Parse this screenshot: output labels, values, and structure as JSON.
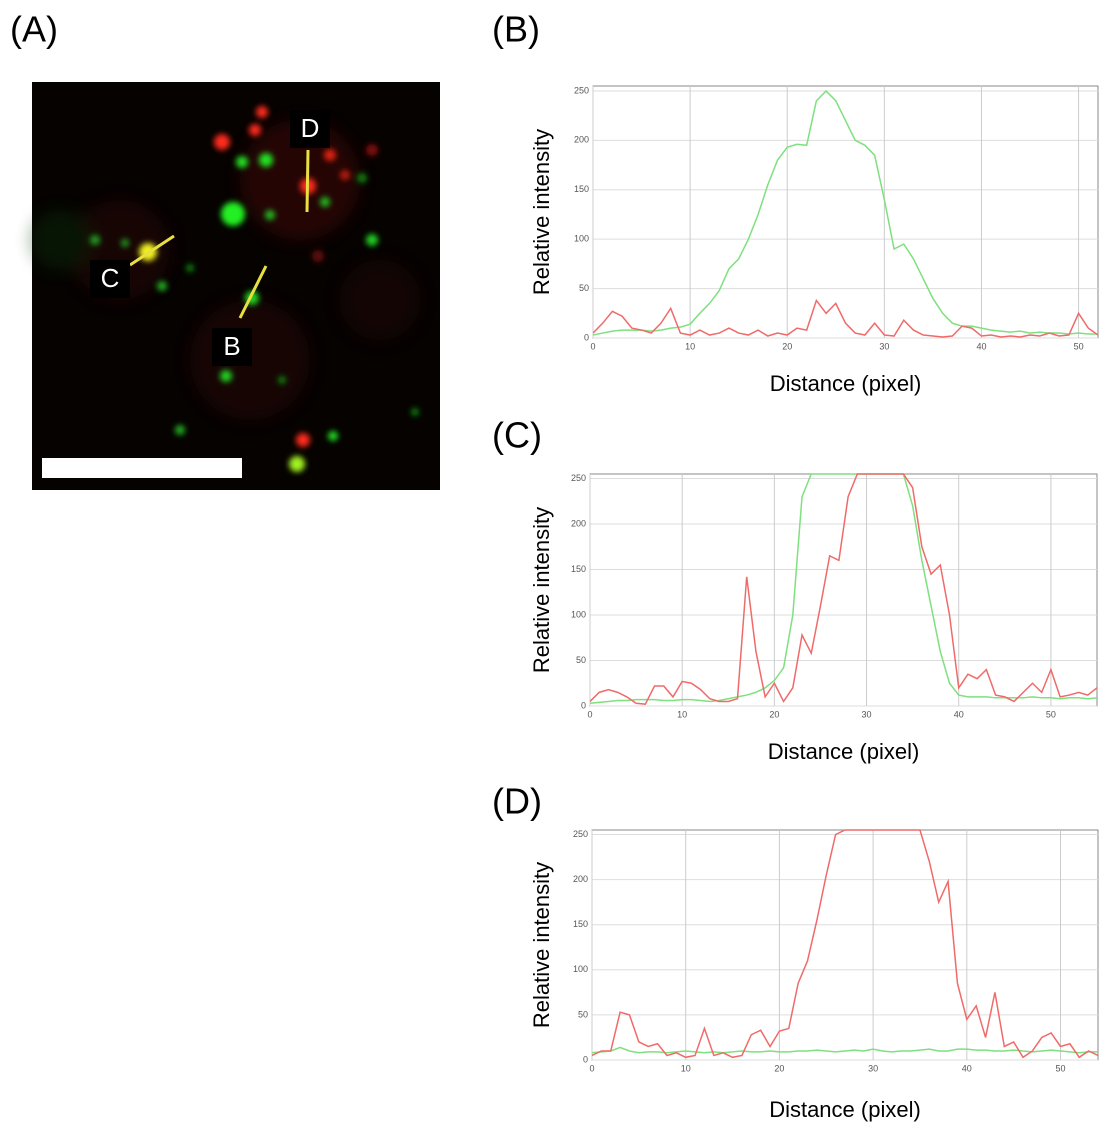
{
  "panel_labels": [
    "(A)",
    "(B)",
    "(C)",
    "(D)"
  ],
  "image_labels": [
    "D",
    "C",
    "B"
  ],
  "chart_data": [
    {
      "type": "line",
      "xlabel": "Distance (pixel)",
      "ylabel": "Relative intensity",
      "xlim": [
        0,
        52
      ],
      "ylim": [
        0,
        255
      ],
      "xticks": [
        0,
        10,
        20,
        30,
        40,
        50
      ],
      "yticks": [
        0,
        50,
        100,
        150,
        200,
        250
      ],
      "grid": true,
      "x": [
        0,
        1,
        2,
        3,
        4,
        5,
        6,
        7,
        8,
        9,
        10,
        11,
        12,
        13,
        14,
        15,
        16,
        17,
        18,
        19,
        20,
        21,
        22,
        23,
        24,
        25,
        26,
        27,
        28,
        29,
        30,
        31,
        32,
        33,
        34,
        35,
        36,
        37,
        38,
        39,
        40,
        41,
        42,
        43,
        44,
        45,
        46,
        47,
        48,
        49,
        50,
        51,
        52
      ],
      "series": [
        {
          "color": "#7ee07e",
          "values": [
            3,
            5,
            7,
            8,
            8,
            8,
            7,
            8,
            10,
            11,
            14,
            25,
            35,
            48,
            70,
            80,
            100,
            125,
            155,
            180,
            193,
            196,
            195,
            240,
            250,
            240,
            220,
            200,
            195,
            185,
            140,
            90,
            95,
            80,
            60,
            40,
            25,
            15,
            12,
            12,
            10,
            8,
            7,
            6,
            7,
            5,
            6,
            5,
            5,
            4,
            5,
            4,
            4
          ]
        },
        {
          "color": "#f06a6a",
          "values": [
            5,
            15,
            27,
            22,
            10,
            8,
            5,
            15,
            30,
            5,
            3,
            8,
            3,
            5,
            10,
            5,
            3,
            8,
            2,
            5,
            3,
            10,
            8,
            38,
            25,
            35,
            15,
            5,
            3,
            15,
            3,
            2,
            18,
            8,
            3,
            2,
            1,
            2,
            12,
            10,
            2,
            3,
            1,
            2,
            1,
            3,
            2,
            5,
            2,
            3,
            25,
            10,
            3
          ]
        }
      ]
    },
    {
      "type": "line",
      "xlabel": "Distance (pixel)",
      "ylabel": "Relative intensity",
      "xlim": [
        0,
        55
      ],
      "ylim": [
        0,
        255
      ],
      "xticks": [
        0,
        10,
        20,
        30,
        40,
        50
      ],
      "yticks": [
        0,
        50,
        100,
        150,
        200,
        250
      ],
      "grid": true,
      "x": [
        0,
        1,
        2,
        3,
        4,
        5,
        6,
        7,
        8,
        9,
        10,
        11,
        12,
        13,
        14,
        15,
        16,
        17,
        18,
        19,
        20,
        21,
        22,
        23,
        24,
        25,
        26,
        27,
        28,
        29,
        30,
        31,
        32,
        33,
        34,
        35,
        36,
        37,
        38,
        39,
        40,
        41,
        42,
        43,
        44,
        45,
        46,
        47,
        48,
        49,
        50,
        51,
        52,
        53,
        54,
        55
      ],
      "series": [
        {
          "color": "#7ee07e",
          "values": [
            3,
            4,
            5,
            6,
            6,
            7,
            7,
            7,
            6,
            6,
            7,
            7,
            6,
            5,
            6,
            8,
            10,
            12,
            15,
            20,
            28,
            42,
            100,
            230,
            255,
            255,
            255,
            255,
            255,
            255,
            255,
            255,
            255,
            255,
            255,
            220,
            160,
            110,
            60,
            25,
            12,
            10,
            10,
            10,
            9,
            9,
            9,
            9,
            10,
            9,
            9,
            8,
            9,
            9,
            8,
            9
          ]
        },
        {
          "color": "#f06a6a",
          "values": [
            5,
            15,
            18,
            15,
            10,
            3,
            2,
            22,
            22,
            10,
            27,
            25,
            18,
            8,
            5,
            5,
            8,
            142,
            60,
            10,
            25,
            5,
            20,
            78,
            58,
            110,
            165,
            160,
            230,
            255,
            255,
            255,
            255,
            255,
            255,
            240,
            175,
            145,
            155,
            100,
            20,
            35,
            30,
            40,
            12,
            10,
            5,
            15,
            25,
            15,
            40,
            10,
            12,
            15,
            12,
            20
          ]
        }
      ]
    },
    {
      "type": "line",
      "xlabel": "Distance (pixel)",
      "ylabel": "Relative intensity",
      "xlim": [
        0,
        54
      ],
      "ylim": [
        0,
        255
      ],
      "xticks": [
        0,
        10,
        20,
        30,
        40,
        50
      ],
      "yticks": [
        0,
        50,
        100,
        150,
        200,
        250
      ],
      "grid": true,
      "x": [
        0,
        1,
        2,
        3,
        4,
        5,
        6,
        7,
        8,
        9,
        10,
        11,
        12,
        13,
        14,
        15,
        16,
        17,
        18,
        19,
        20,
        21,
        22,
        23,
        24,
        25,
        26,
        27,
        28,
        29,
        30,
        31,
        32,
        33,
        34,
        35,
        36,
        37,
        38,
        39,
        40,
        41,
        42,
        43,
        44,
        45,
        46,
        47,
        48,
        49,
        50,
        51,
        52,
        53,
        54
      ],
      "series": [
        {
          "color": "#7ee07e",
          "values": [
            8,
            9,
            10,
            14,
            10,
            8,
            9,
            9,
            8,
            9,
            10,
            9,
            8,
            9,
            8,
            9,
            10,
            9,
            9,
            10,
            9,
            9,
            10,
            10,
            11,
            10,
            9,
            10,
            11,
            10,
            12,
            10,
            9,
            10,
            10,
            11,
            12,
            10,
            10,
            12,
            12,
            11,
            11,
            10,
            10,
            11,
            10,
            9,
            10,
            11,
            10,
            9,
            8,
            9,
            9
          ]
        },
        {
          "color": "#f06a6a",
          "values": [
            5,
            10,
            10,
            53,
            50,
            20,
            15,
            18,
            5,
            8,
            3,
            5,
            35,
            5,
            8,
            3,
            5,
            28,
            33,
            15,
            32,
            35,
            85,
            110,
            155,
            205,
            250,
            255,
            255,
            255,
            255,
            255,
            255,
            255,
            255,
            255,
            220,
            175,
            198,
            85,
            45,
            60,
            25,
            75,
            15,
            20,
            3,
            10,
            25,
            30,
            15,
            18,
            3,
            10,
            5
          ]
        }
      ]
    }
  ]
}
